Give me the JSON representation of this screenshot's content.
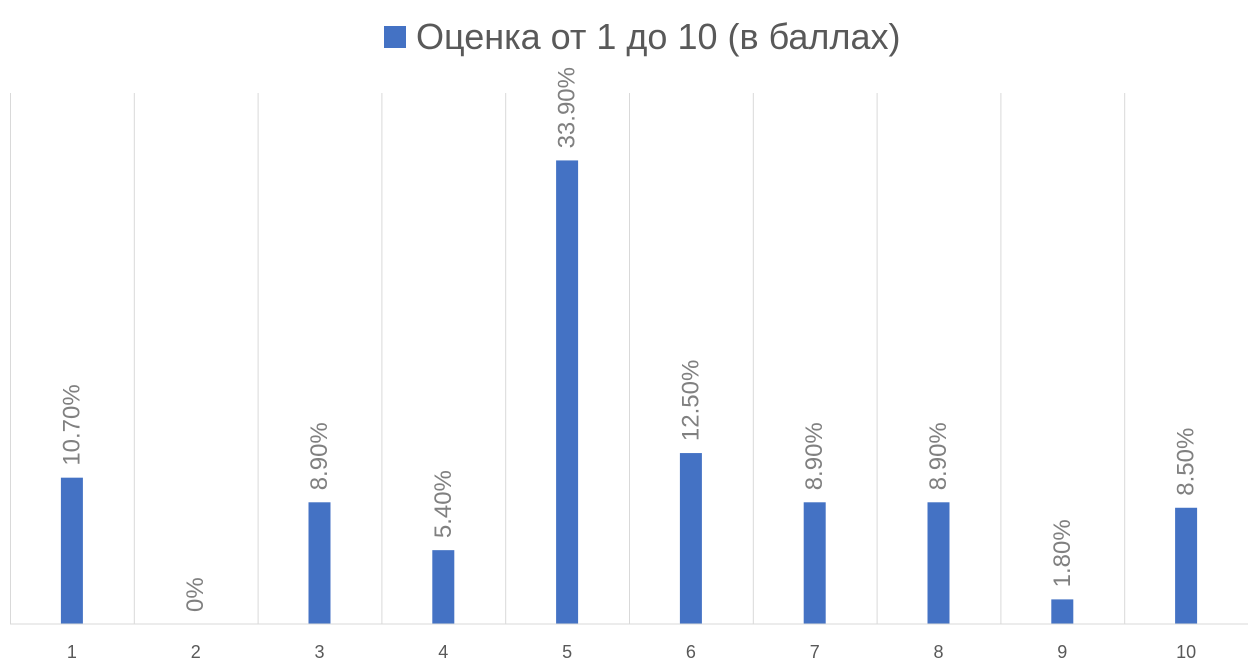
{
  "chart_data": {
    "type": "bar",
    "categories": [
      "1",
      "2",
      "3",
      "4",
      "5",
      "6",
      "7",
      "8",
      "9",
      "10"
    ],
    "series": [
      {
        "name": "Оценка от 1 до 10 (в баллах)",
        "values": [
          10.7,
          0,
          8.9,
          5.4,
          33.9,
          12.5,
          8.9,
          8.9,
          1.8,
          8.5
        ],
        "labels": [
          "10.70%",
          "0%",
          "8.90%",
          "5.40%",
          "33.90%",
          "12.50%",
          "8.90%",
          "8.90%",
          "1.80%",
          "8.50%"
        ]
      }
    ],
    "title": "",
    "xlabel": "",
    "ylabel": "",
    "ylim": [
      0,
      40
    ],
    "grid": "vertical",
    "legend": "top",
    "bar_color": "#4472C4"
  }
}
